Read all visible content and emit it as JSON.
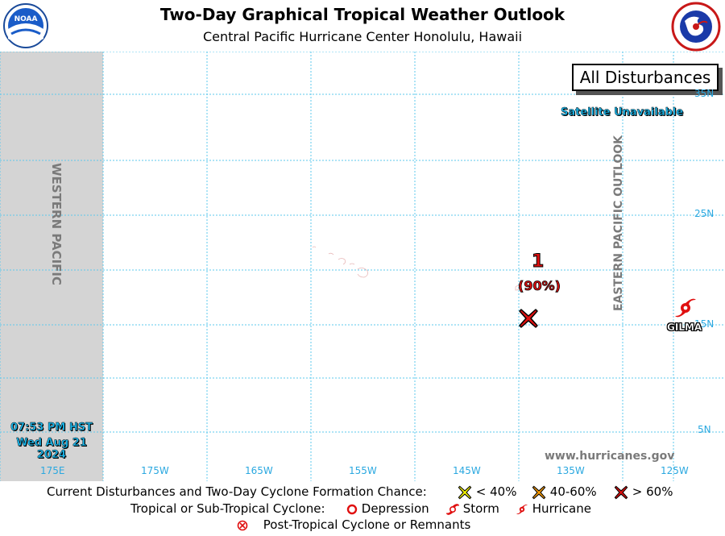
{
  "header": {
    "title": "Two-Day Graphical Tropical Weather Outlook",
    "subtitle": "Central Pacific Hurricane Center  Honolulu, Hawaii",
    "left_logo": "noaa-logo",
    "right_logo": "national-weather-service-logo"
  },
  "map": {
    "west_region_label": "WESTERN PACIFIC",
    "east_region_label": "EASTERN PACIFIC OUTLOOK",
    "box_label": "All Disturbances",
    "satellite_status": "Satellite Unavailable",
    "website": "www.hurricanes.gov",
    "issue_time": "07:53 PM HST",
    "issue_date": "Wed Aug 21 2024",
    "latitudes": [
      "35N",
      "25N",
      "15N",
      "5N"
    ],
    "longitudes": [
      "175E",
      "175W",
      "165W",
      "155W",
      "145W",
      "135W",
      "125W"
    ],
    "disturbance": {
      "number": "1",
      "chance": "(90%)",
      "symbol": "red-x-marker",
      "color": "#e01010"
    },
    "storm": {
      "name": "GILMA",
      "symbol": "hurricane-symbol",
      "color": "#e01010"
    },
    "colors": {
      "grid": "#5ec8ec",
      "west_band": "#d4d4d4",
      "label_blue": "#2aa8e0"
    }
  },
  "legend": {
    "row1_label": "Current Disturbances and Two-Day Cyclone Formation Chance:",
    "low": "< 40%",
    "medium": "40-60%",
    "high": "> 60%",
    "colors": {
      "low": "#f7f700",
      "medium": "#f79a00",
      "high": "#e01010"
    },
    "row2_label": "Tropical or Sub-Tropical Cyclone:",
    "depression": "Depression",
    "storm": "Storm",
    "hurricane": "Hurricane",
    "row3_label": "Post-Tropical Cyclone or Remnants"
  }
}
